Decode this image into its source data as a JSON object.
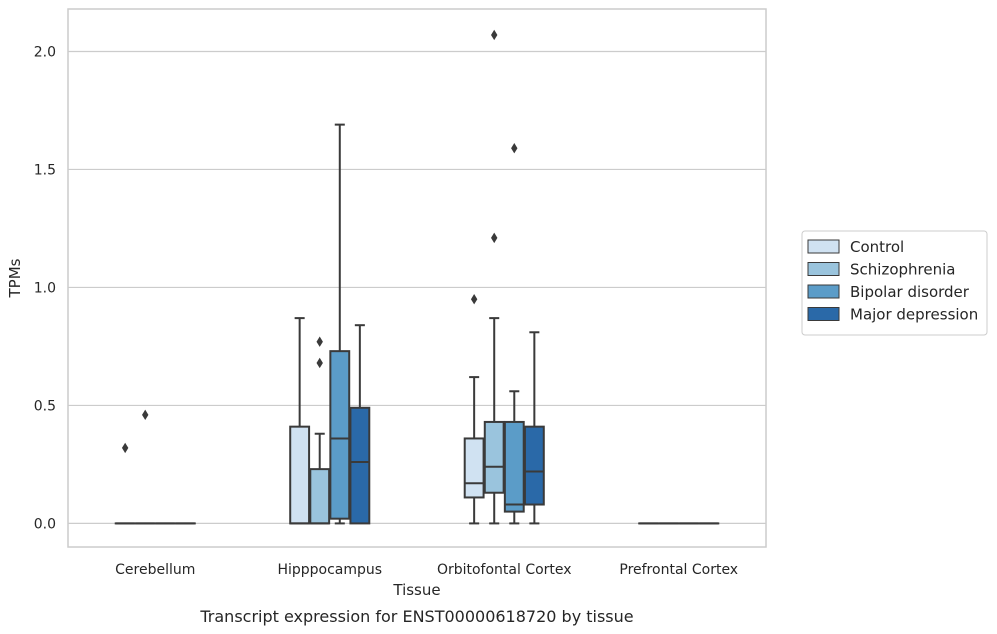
{
  "caption": "Transcript expression for ENST00000618720 by tissue",
  "chart_data": {
    "type": "box",
    "xlabel": "Tissue",
    "ylabel": "TPMs",
    "ylim": [
      -0.1,
      2.18
    ],
    "yticks": [
      "0.0",
      "0.5",
      "1.0",
      "1.5",
      "2.0"
    ],
    "grid": "horizontal",
    "legend_position": "right",
    "categories": [
      "Cerebellum",
      "Hipppocampus",
      "Orbitofontal Cortex",
      "Prefrontal Cortex"
    ],
    "series": [
      {
        "name": "Control",
        "color": "#d0e2f2",
        "boxes": [
          {
            "q1": 0,
            "median": 0,
            "q3": 0,
            "whisker_low": 0,
            "whisker_high": 0,
            "outliers": [
              0.32
            ]
          },
          {
            "q1": 0,
            "median": 0,
            "q3": 0.41,
            "whisker_low": 0,
            "whisker_high": 0.87,
            "outliers": []
          },
          {
            "q1": 0.11,
            "median": 0.17,
            "q3": 0.36,
            "whisker_low": 0,
            "whisker_high": 0.62,
            "outliers": [
              0.95
            ]
          },
          {
            "q1": 0,
            "median": 0,
            "q3": 0,
            "whisker_low": 0,
            "whisker_high": 0,
            "outliers": []
          }
        ]
      },
      {
        "name": "Schizophrenia",
        "color": "#9ac4dd",
        "boxes": [
          {
            "q1": 0,
            "median": 0,
            "q3": 0,
            "whisker_low": 0,
            "whisker_high": 0,
            "outliers": [
              0.46
            ]
          },
          {
            "q1": 0,
            "median": 0,
            "q3": 0.23,
            "whisker_low": 0,
            "whisker_high": 0.38,
            "outliers": [
              0.68,
              0.77
            ]
          },
          {
            "q1": 0.13,
            "median": 0.24,
            "q3": 0.43,
            "whisker_low": 0,
            "whisker_high": 0.87,
            "outliers": [
              1.21,
              2.07
            ]
          },
          {
            "q1": 0,
            "median": 0,
            "q3": 0,
            "whisker_low": 0,
            "whisker_high": 0,
            "outliers": []
          }
        ]
      },
      {
        "name": "Bipolar disorder",
        "color": "#5b9cc8",
        "boxes": [
          {
            "q1": 0,
            "median": 0,
            "q3": 0,
            "whisker_low": 0,
            "whisker_high": 0,
            "outliers": []
          },
          {
            "q1": 0.02,
            "median": 0.36,
            "q3": 0.73,
            "whisker_low": 0,
            "whisker_high": 1.69,
            "outliers": []
          },
          {
            "q1": 0.05,
            "median": 0.08,
            "q3": 0.43,
            "whisker_low": 0,
            "whisker_high": 0.56,
            "outliers": [
              1.59
            ]
          },
          {
            "q1": 0,
            "median": 0,
            "q3": 0,
            "whisker_low": 0,
            "whisker_high": 0,
            "outliers": []
          }
        ]
      },
      {
        "name": "Major depression",
        "color": "#2a69a8",
        "boxes": [
          {
            "q1": 0,
            "median": 0,
            "q3": 0,
            "whisker_low": 0,
            "whisker_high": 0,
            "outliers": []
          },
          {
            "q1": 0,
            "median": 0.26,
            "q3": 0.49,
            "whisker_low": 0,
            "whisker_high": 0.84,
            "outliers": []
          },
          {
            "q1": 0.08,
            "median": 0.22,
            "q3": 0.41,
            "whisker_low": 0,
            "whisker_high": 0.81,
            "outliers": []
          },
          {
            "q1": 0,
            "median": 0,
            "q3": 0,
            "whisker_low": 0,
            "whisker_high": 0,
            "outliers": []
          }
        ]
      }
    ]
  }
}
